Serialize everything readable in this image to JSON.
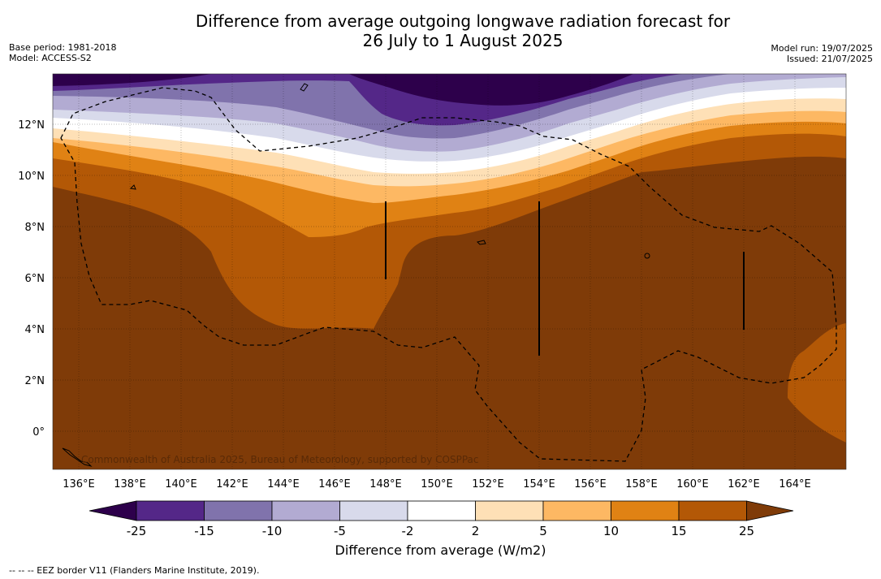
{
  "header": {
    "title_line1": "Difference from average outgoing longwave radiation forecast for",
    "title_line2": "26 July to 1 August 2025",
    "base_period": "Base period: 1981-2018",
    "model": "Model: ACCESS-S2",
    "model_run": "Model run: 19/07/2025",
    "issued": "Issued: 21/07/2025"
  },
  "map": {
    "lat_labels": [
      "12°N",
      "10°N",
      "8°N",
      "6°N",
      "4°N",
      "2°N",
      "0°"
    ],
    "lon_labels": [
      "136°E",
      "138°E",
      "140°E",
      "142°E",
      "144°E",
      "146°E",
      "148°E",
      "150°E",
      "152°E",
      "154°E",
      "156°E",
      "158°E",
      "160°E",
      "162°E",
      "164°E"
    ],
    "copyright": "Commonwealth of Australia 2025, Bureau of Meteorology, supported by COSPPac"
  },
  "colorbar": {
    "ticks": [
      "-25",
      "-15",
      "-10",
      "-5",
      "-2",
      "2",
      "5",
      "10",
      "15",
      "25"
    ],
    "colors": [
      "#2d004b",
      "#542788",
      "#8073ac",
      "#b2abd2",
      "#d8daeb",
      "#ffffff",
      "#fee0b6",
      "#fdb863",
      "#e08214",
      "#b35806",
      "#7f3b08"
    ],
    "label": "Difference from average (W/m2)"
  },
  "footnote": "--  --  -- EEZ border V11 (Flanders Marine Institute, 2019)."
}
